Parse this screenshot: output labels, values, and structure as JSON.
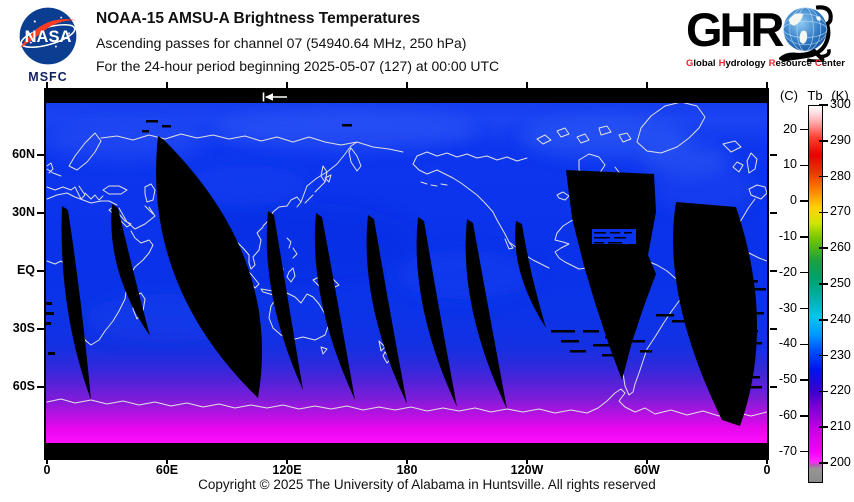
{
  "header": {
    "nasa_logo_text": "NASA",
    "nasa_logo_sub": "MSFC",
    "title_line1": "NOAA-15 AMSU-A Brightness Temperatures",
    "title_line2": "Ascending passes for channel 07 (54940.64 MHz, 250 hPa)",
    "title_line3": "For the 24-hour period beginning 2025-05-07 (127) at 00:00 UTC",
    "ghrc_letters": "GHR",
    "ghrc_tagline_words": [
      "Global",
      "Hydrology",
      "Resource",
      "Center"
    ]
  },
  "map": {
    "lat_labels": [
      "60N",
      "30N",
      "EQ",
      "30S",
      "60S"
    ],
    "lon_labels": [
      "0",
      "60E",
      "120E",
      "180",
      "120W",
      "60W",
      "0"
    ]
  },
  "colorbar": {
    "header_c": "(C)",
    "header_tb": "Tb",
    "header_k": "(K)",
    "kelvin_ticks": [
      300,
      290,
      280,
      270,
      260,
      250,
      240,
      230,
      220,
      210,
      200
    ],
    "celsius_ticks": [
      20,
      10,
      0,
      -10,
      -20,
      -30,
      -40,
      -50,
      -60,
      -70
    ]
  },
  "footer": {
    "copyright": "Copyright © 2025 The University of Alabama in Huntsville.  All rights reserved"
  },
  "chart_data": {
    "type": "heatmap",
    "title": "NOAA-15 AMSU-A Brightness Temperatures",
    "subtitle": "Ascending passes for channel 07 (54940.64 MHz, 250 hPa)",
    "period": "24-hour period beginning 2025-05-07 (127) at 00:00 UTC",
    "projection": "equirectangular world map with white coastlines, longitude axis 0 eastward through 180 back to 0",
    "x_ticks": [
      "0",
      "60E",
      "120E",
      "180",
      "120W",
      "60W",
      "0"
    ],
    "y_ticks": [
      "60N",
      "30N",
      "EQ",
      "30S",
      "60S"
    ],
    "colorbar": {
      "label_left_units": "(C)",
      "label_quantity": "Tb",
      "label_right_units": "(K)",
      "kelvin_tick_values": [
        300,
        290,
        280,
        270,
        260,
        250,
        240,
        230,
        220,
        210,
        200
      ],
      "celsius_tick_values": [
        20,
        10,
        0,
        -10,
        -20,
        -30,
        -40,
        -50,
        -60,
        -70
      ],
      "scale_colors_top_to_bottom": [
        "#ffffff",
        "#ff9898",
        "#e80000",
        "#ff8c00",
        "#ffd200",
        "#78c800",
        "#00a050",
        "#00b4b4",
        "#00c8e6",
        "#0096ff",
        "#0050ff",
        "#0014f0",
        "#3c00d2",
        "#8c00dc",
        "#dc00e6",
        "#ff00ff",
        "#969696"
      ]
    },
    "field_summary": "Brightness temperatures ~215-232 K (blue) across most of the globe at 250 hPa, slightly warmer lighter-blue bands near 60-80N, decreasing south of 50S through purple (~215 K) and magenta (~200-205 K) toward the Antarctic coast; black lens-shaped slivers are gaps between successive ascending orbit swaths, larger black blobs over eastern North America, northern South America and the far-right mid-latitudes are missing data, and thin black strips cap the unsampled polar rows at top and bottom."
  }
}
